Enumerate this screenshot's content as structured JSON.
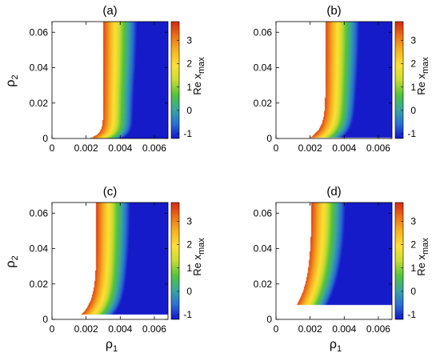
{
  "chart_data": [
    {
      "type": "heatmap",
      "panel_label": "(a)",
      "xlabel": "",
      "ylabel": "ρ",
      "ylabel_sub": "2",
      "xlim": [
        0,
        0.0068
      ],
      "ylim": [
        0,
        0.066
      ],
      "xticks": [
        "0",
        "0.002",
        "0.004",
        "0.006"
      ],
      "yticks": [
        "0",
        "0.02",
        "0.04",
        "0.06"
      ],
      "colorbar": {
        "label": "Re x",
        "label_sub": "max",
        "range": [
          -1.2,
          3.8
        ],
        "ticks": [
          "-1",
          "0",
          "1",
          "2",
          "3"
        ]
      },
      "boundary": {
        "type": "vertical",
        "x0": 0.0024,
        "y_start": 0.0,
        "offset": 0.0008,
        "knee": 0.0022,
        "k": 350
      },
      "blue_minimum": [
        0.0056,
        0.01
      ]
    },
    {
      "type": "heatmap",
      "panel_label": "(b)",
      "xlabel": "",
      "ylabel": "",
      "ylabel_sub": "",
      "xlim": [
        0,
        0.0068
      ],
      "ylim": [
        0,
        0.066
      ],
      "xticks": [
        "0",
        "0.002",
        "0.004",
        "0.006"
      ],
      "yticks": [
        "0",
        "0.02",
        "0.04",
        "0.06"
      ],
      "colorbar": {
        "label": "Re x",
        "label_sub": "max",
        "range": [
          -1.2,
          3.8
        ],
        "ticks": [
          "-1",
          "0",
          "1",
          "2",
          "3"
        ]
      },
      "boundary": {
        "type": "knee",
        "y_start": 0.0005,
        "knee": 0.002,
        "k": 180
      },
      "blue_minimum": [
        0.0055,
        0.01
      ]
    },
    {
      "type": "heatmap",
      "panel_label": "(c)",
      "xlabel": "ρ",
      "xlabel_sub": "1",
      "ylabel": "ρ",
      "ylabel_sub": "2",
      "xlim": [
        0,
        0.0068
      ],
      "ylim": [
        0,
        0.066
      ],
      "xticks": [
        "0",
        "0.002",
        "0.004",
        "0.006"
      ],
      "yticks": [
        "0",
        "0.02",
        "0.04",
        "0.06"
      ],
      "colorbar": {
        "label": "Re x",
        "label_sub": "max",
        "range": [
          -1.2,
          3.8
        ],
        "ticks": [
          "-1",
          "0",
          "1",
          "2",
          "3"
        ]
      },
      "boundary": {
        "type": "knee",
        "y_start": 0.0025,
        "knee": 0.0017,
        "k": 120
      },
      "blue_minimum": [
        0.0054,
        0.01
      ]
    },
    {
      "type": "heatmap",
      "panel_label": "(d)",
      "xlabel": "ρ",
      "xlabel_sub": "1",
      "ylabel": "",
      "ylabel_sub": "",
      "xlim": [
        0,
        0.0068
      ],
      "ylim": [
        0,
        0.066
      ],
      "xticks": [
        "0",
        "0.002",
        "0.004",
        "0.006"
      ],
      "yticks": [
        "0",
        "0.02",
        "0.04",
        "0.06"
      ],
      "colorbar": {
        "label": "Re x",
        "label_sub": "max",
        "range": [
          -1.2,
          3.8
        ],
        "ticks": [
          "-1",
          "0",
          "1",
          "2",
          "3"
        ]
      },
      "boundary": {
        "type": "knee",
        "y_start": 0.008,
        "knee": 0.0012,
        "k": 70
      },
      "blue_minimum": [
        0.0042,
        0.006
      ]
    }
  ],
  "colormap": [
    "#1414c8",
    "#2a6fd6",
    "#3aa6a0",
    "#53c43c",
    "#c8dc32",
    "#ffe033",
    "#f6b422",
    "#ec7218",
    "#d42814"
  ]
}
